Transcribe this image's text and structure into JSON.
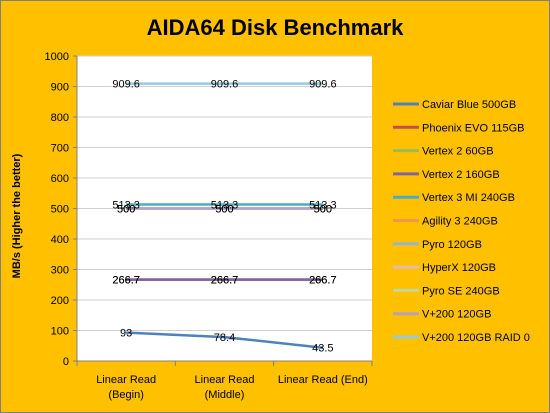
{
  "chart_data": {
    "type": "line",
    "title": "AIDA64 Disk Benchmark",
    "ylabel": "MB/s (Higher the better)",
    "xlabel": "",
    "ylim": [
      0,
      1000
    ],
    "yticks": [
      0,
      100,
      200,
      300,
      400,
      500,
      600,
      700,
      800,
      900,
      1000
    ],
    "categories": [
      [
        "Linear Read",
        "(Begin)"
      ],
      [
        "Linear Read",
        "(Middle)"
      ],
      [
        "Linear Read (End)"
      ]
    ],
    "grid": true,
    "legend_position": "right",
    "series": [
      {
        "name": "Caviar Blue 500GB",
        "color": "#4F81BD",
        "values": [
          93,
          78.4,
          43.5
        ]
      },
      {
        "name": "Phoenix EVO 115GB",
        "color": "#C0504D",
        "values": [
          266.7,
          266.7,
          266.7
        ]
      },
      {
        "name": "Vertex 2 60GB",
        "color": "#9BBB59",
        "values": [
          266.7,
          266.7,
          266.7
        ]
      },
      {
        "name": "Vertex 2 160GB",
        "color": "#8064A2",
        "values": [
          266.7,
          266.7,
          266.7
        ]
      },
      {
        "name": "Vertex 3 MI 240GB",
        "color": "#4BACC6",
        "values": [
          513.3,
          513.3,
          513.3
        ]
      },
      {
        "name": "Agility 3 240GB",
        "color": "#F79646",
        "values": [
          500,
          500,
          500
        ]
      },
      {
        "name": "Pyro 120GB",
        "color": "#95B3D7",
        "values": [
          500,
          500,
          500
        ]
      },
      {
        "name": "HyperX 120GB",
        "color": "#E6B9B8",
        "values": [
          500,
          500,
          500
        ]
      },
      {
        "name": "Pyro SE 240GB",
        "color": "#C3D69B",
        "values": [
          500,
          500,
          500
        ]
      },
      {
        "name": "V+200 120GB",
        "color": "#B3A2C7",
        "values": [
          500,
          500,
          500
        ]
      },
      {
        "name": "V+200 120GB RAID 0",
        "color": "#93CDDD",
        "values": [
          909.6,
          909.6,
          909.6
        ]
      }
    ],
    "data_labels": [
      {
        "series": 0,
        "text": [
          "93",
          "78.4",
          "43.5"
        ]
      },
      {
        "series": 1,
        "text": [
          "266.7",
          "266.7",
          "266.7"
        ]
      },
      {
        "series": 2,
        "text": [
          "266.7",
          "266.7",
          "266.7"
        ]
      },
      {
        "series": 4,
        "text": [
          "513.3",
          "513.3",
          "513.3"
        ]
      },
      {
        "series": 5,
        "text": [
          "500",
          "500",
          "500"
        ]
      },
      {
        "series": 6,
        "text": [
          "500",
          "500",
          "500"
        ]
      },
      {
        "series": 10,
        "text": [
          "909.6",
          "909.6",
          "909.6"
        ]
      }
    ]
  }
}
